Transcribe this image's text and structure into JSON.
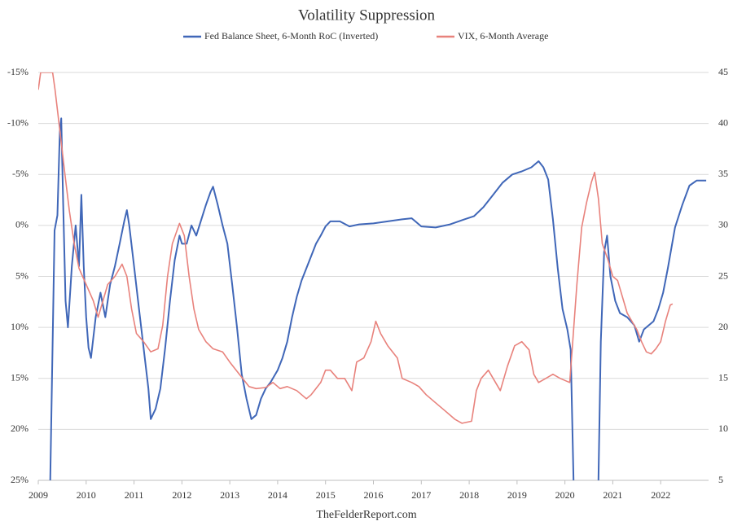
{
  "chart_data": {
    "type": "line",
    "title": "Volatility Suppression",
    "source": "TheFelderReport.com",
    "legend": "top",
    "grid": true,
    "xlim": [
      2009,
      2023
    ],
    "xticks": [
      2009,
      2010,
      2011,
      2012,
      2013,
      2014,
      2015,
      2016,
      2017,
      2018,
      2019,
      2020,
      2021,
      2022
    ],
    "ylim": [
      -15,
      25
    ],
    "y_inverted": true,
    "yticks": [
      {
        "value": -15,
        "label": "-15%"
      },
      {
        "value": -10,
        "label": "-10%"
      },
      {
        "value": -5,
        "label": "-5%"
      },
      {
        "value": 0,
        "label": "0%"
      },
      {
        "value": 5,
        "label": "5%"
      },
      {
        "value": 10,
        "label": "10%"
      },
      {
        "value": 15,
        "label": "15%"
      },
      {
        "value": 20,
        "label": "20%"
      },
      {
        "value": 25,
        "label": "25%"
      }
    ],
    "y2lim": [
      5,
      45
    ],
    "y2ticks": [
      45,
      40,
      35,
      30,
      25,
      20,
      15,
      10,
      5
    ],
    "series": [
      {
        "name": "Fed Balance Sheet, 6-Month RoC (Inverted)",
        "color": "#4067b8",
        "axis": "y",
        "x": [
          2009.25,
          2009.34,
          2009.4,
          2009.45,
          2009.48,
          2009.52,
          2009.57,
          2009.62,
          2009.7,
          2009.78,
          2009.85,
          2009.9,
          2009.95,
          2010.0,
          2010.05,
          2010.1,
          2010.2,
          2010.3,
          2010.4,
          2010.5,
          2010.6,
          2010.7,
          2010.8,
          2010.85,
          2010.9,
          2011.0,
          2011.1,
          2011.2,
          2011.3,
          2011.35,
          2011.45,
          2011.55,
          2011.65,
          2011.75,
          2011.85,
          2011.95,
          2012.0,
          2012.1,
          2012.2,
          2012.3,
          2012.4,
          2012.5,
          2012.6,
          2012.65,
          2012.75,
          2012.85,
          2012.95,
          2013.05,
          2013.15,
          2013.25,
          2013.35,
          2013.45,
          2013.55,
          2013.65,
          2013.75,
          2013.85,
          2014.0,
          2014.1,
          2014.2,
          2014.3,
          2014.4,
          2014.5,
          2014.6,
          2014.7,
          2014.8,
          2014.9,
          2015.0,
          2015.1,
          2015.3,
          2015.5,
          2015.7,
          2016.0,
          2016.3,
          2016.6,
          2016.8,
          2017.0,
          2017.3,
          2017.6,
          2017.9,
          2018.1,
          2018.3,
          2018.5,
          2018.7,
          2018.9,
          2019.1,
          2019.3,
          2019.45,
          2019.55,
          2019.65,
          2019.75,
          2019.85,
          2019.95,
          2020.05,
          2020.12,
          2020.18,
          2020.4,
          2020.7,
          2020.75,
          2020.82,
          2020.88,
          2020.95,
          2021.05,
          2021.15,
          2021.3,
          2021.45,
          2021.55,
          2021.65,
          2021.75,
          2021.85,
          2021.95,
          2022.05,
          2022.15,
          2022.3,
          2022.45,
          2022.6,
          2022.75,
          2022.95
        ],
        "values": [
          25,
          0.5,
          -1,
          -9.3,
          -10.5,
          -2,
          7.4,
          10,
          4,
          0,
          4,
          -3,
          4,
          9,
          12,
          13,
          9,
          6.6,
          9,
          5.8,
          4,
          1.8,
          -0.5,
          -1.5,
          0,
          4,
          8,
          12,
          16,
          19,
          18,
          16,
          12,
          7.4,
          3.4,
          1,
          1.8,
          1.8,
          0,
          1,
          -0.5,
          -2,
          -3.3,
          -3.8,
          -2,
          0,
          1.8,
          5.8,
          10,
          14.6,
          17,
          19,
          18.6,
          17,
          16,
          15.4,
          14.2,
          13,
          11.4,
          9,
          7,
          5.4,
          4.2,
          3,
          1.8,
          1,
          0.1,
          -0.4,
          -0.4,
          0.1,
          -0.1,
          -0.2,
          -0.4,
          -0.6,
          -0.7,
          0.1,
          0.2,
          -0.1,
          -0.6,
          -0.9,
          -1.8,
          -3,
          -4.2,
          -5,
          -5.3,
          -5.7,
          -6.3,
          -5.7,
          -4.5,
          -0.6,
          4.2,
          8.2,
          10.2,
          12.2,
          25,
          null,
          25,
          11.4,
          2.6,
          1,
          5,
          7.4,
          8.6,
          9,
          9.8,
          11.4,
          10.2,
          9.8,
          9.4,
          8.2,
          6.6,
          4.2,
          0.2,
          -2,
          -3.9,
          -4.4,
          -4.4
        ]
      },
      {
        "name": "VIX, 6-Month Average",
        "color": "#e8827c",
        "axis": "y2",
        "x": [
          2009.0,
          2009.05,
          2009.3,
          2009.35,
          2009.45,
          2009.55,
          2009.65,
          2009.75,
          2009.85,
          2010.0,
          2010.15,
          2010.25,
          2010.35,
          2010.45,
          2010.6,
          2010.75,
          2010.85,
          2010.95,
          2011.05,
          2011.2,
          2011.35,
          2011.5,
          2011.6,
          2011.7,
          2011.8,
          2011.95,
          2012.05,
          2012.15,
          2012.25,
          2012.35,
          2012.5,
          2012.65,
          2012.85,
          2013.0,
          2013.2,
          2013.4,
          2013.55,
          2013.75,
          2013.9,
          2014.05,
          2014.2,
          2014.4,
          2014.6,
          2014.7,
          2014.9,
          2015.0,
          2015.1,
          2015.25,
          2015.4,
          2015.55,
          2015.65,
          2015.8,
          2015.95,
          2016.05,
          2016.15,
          2016.3,
          2016.5,
          2016.6,
          2016.8,
          2016.95,
          2017.1,
          2017.3,
          2017.5,
          2017.7,
          2017.85,
          2018.05,
          2018.15,
          2018.25,
          2018.4,
          2018.5,
          2018.65,
          2018.8,
          2018.95,
          2019.1,
          2019.25,
          2019.35,
          2019.45,
          2019.6,
          2019.75,
          2019.9,
          2020.1,
          2020.15,
          2020.25,
          2020.35,
          2020.45,
          2020.55,
          2020.62,
          2020.7,
          2020.78,
          2020.9,
          2021.0,
          2021.1,
          2021.2,
          2021.3,
          2021.4,
          2021.5,
          2021.6,
          2021.7,
          2021.8,
          2021.9,
          2022.0,
          2022.1,
          2022.2,
          2022.25
        ],
        "values": [
          43.3,
          45,
          45,
          43.3,
          39.3,
          35.3,
          31.4,
          28.2,
          25.8,
          24.2,
          22.6,
          21,
          22.6,
          24.2,
          25,
          26.2,
          25,
          21.8,
          19.4,
          18.6,
          17.6,
          17.9,
          20.2,
          25,
          28.2,
          30.2,
          29,
          25,
          21.8,
          19.8,
          18.6,
          17.9,
          17.6,
          16.6,
          15.4,
          14.2,
          14,
          14.1,
          14.6,
          14,
          14.2,
          13.8,
          13,
          13.4,
          14.6,
          15.8,
          15.8,
          15,
          15,
          13.8,
          16.6,
          17,
          18.6,
          20.6,
          19.4,
          18.2,
          17,
          15,
          14.6,
          14.2,
          13.4,
          12.6,
          11.8,
          11,
          10.6,
          10.8,
          13.8,
          15,
          15.8,
          15,
          13.8,
          16.2,
          18.2,
          18.6,
          17.8,
          15.4,
          14.6,
          15,
          15.4,
          15,
          14.6,
          17.8,
          24.2,
          29.8,
          32.2,
          34.2,
          35.2,
          32.6,
          28.2,
          26.6,
          25,
          24.6,
          23,
          21.4,
          20.6,
          19.8,
          18.6,
          17.6,
          17.4,
          17.9,
          18.6,
          20.6,
          22.2,
          22.3
        ]
      }
    ]
  }
}
